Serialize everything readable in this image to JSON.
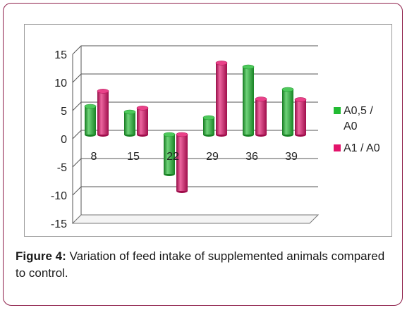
{
  "chart_data": {
    "type": "bar",
    "style": "3d-cylinder",
    "categories": [
      "8",
      "15",
      "22",
      "29",
      "36",
      "39"
    ],
    "series": [
      {
        "name": "A0,5 / A0",
        "name_lines": [
          "A0,5 /",
          "A0"
        ],
        "color": "#22bb33",
        "values": [
          5,
          4,
          -7,
          3,
          12,
          8
        ]
      },
      {
        "name": "A1 / A0",
        "name_lines": [
          "A1 / A0"
        ],
        "color": "#e3136b",
        "values": [
          7.7,
          4.7,
          -10,
          12.7,
          6.3,
          6.2
        ]
      }
    ],
    "yticks": [
      15,
      10,
      5,
      0,
      -5,
      -10,
      -15
    ],
    "ylim": [
      -15,
      15
    ],
    "grid": true,
    "legend_position": "right",
    "title": "",
    "xlabel": "",
    "ylabel": ""
  },
  "caption": {
    "label": "Figure 4:",
    "text": " Variation of feed intake of supplemented animals compared to control."
  }
}
